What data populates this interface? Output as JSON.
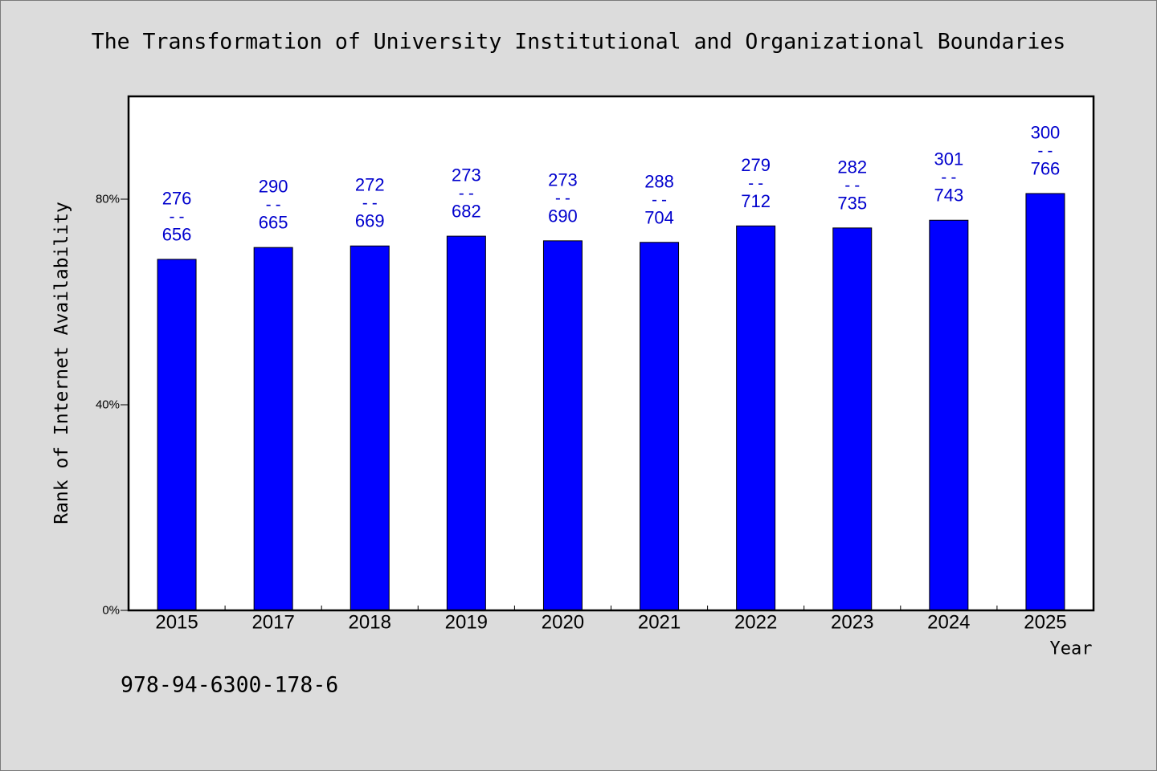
{
  "background_color": "#dcdcdc",
  "plot_background": "#ffffff",
  "footer_text": "978-94-6300-178-6",
  "chart_data": {
    "type": "bar",
    "title": "The Transformation of University Institutional and Organizational Boundaries",
    "xlabel": "Year",
    "ylabel": "Rank of Internet Availability",
    "categories": [
      "2015",
      "2017",
      "2018",
      "2019",
      "2020",
      "2021",
      "2022",
      "2023",
      "2024",
      "2025"
    ],
    "values": [
      68.3,
      70.6,
      70.9,
      72.8,
      71.9,
      71.6,
      74.8,
      74.4,
      75.9,
      81.1
    ],
    "ylim": [
      0,
      100
    ],
    "yticks": [
      0,
      40,
      80
    ],
    "ytick_labels": [
      "0%",
      "40%",
      "80%"
    ],
    "data_labels": [
      [
        "276",
        "--",
        "656"
      ],
      [
        "290",
        "--",
        "665"
      ],
      [
        "272",
        "--",
        "669"
      ],
      [
        "273",
        "--",
        "682"
      ],
      [
        "273",
        "--",
        "690"
      ],
      [
        "288",
        "--",
        "704"
      ],
      [
        "279",
        "--",
        "712"
      ],
      [
        "282",
        "--",
        "735"
      ],
      [
        "301",
        "--",
        "743"
      ],
      [
        "300",
        "--",
        "766"
      ]
    ],
    "bar_color": "#0000ff",
    "bar_edge_color": "#000000",
    "label_color": "#0000cd",
    "grid": false
  }
}
